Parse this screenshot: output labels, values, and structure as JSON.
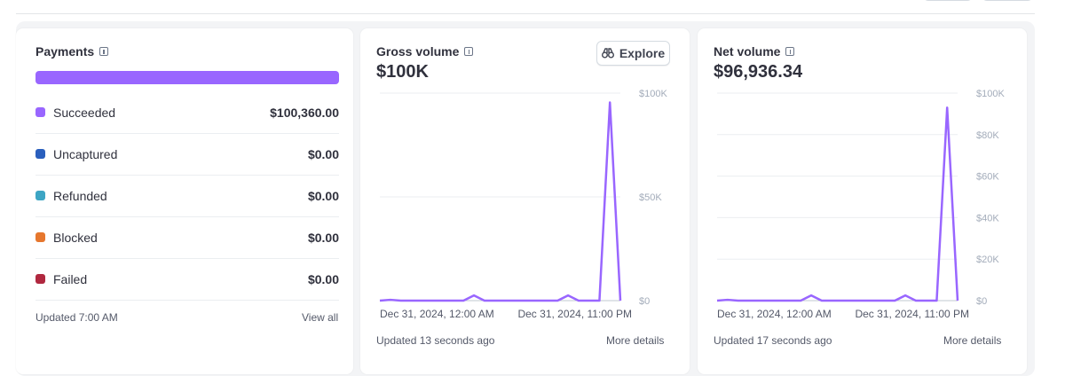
{
  "payments": {
    "title": "Payments",
    "bar_color": "#9966ff",
    "rows": [
      {
        "label": "Succeeded",
        "amount": "$100,360.00",
        "color": "#9966ff"
      },
      {
        "label": "Uncaptured",
        "amount": "$0.00",
        "color": "#2a5fbd"
      },
      {
        "label": "Refunded",
        "amount": "$0.00",
        "color": "#3da5c4"
      },
      {
        "label": "Blocked",
        "amount": "$0.00",
        "color": "#e6772e"
      },
      {
        "label": "Failed",
        "amount": "$0.00",
        "color": "#b0283f"
      }
    ],
    "updated": "Updated 7:00 AM",
    "view_all": "View all"
  },
  "gross": {
    "title": "Gross volume",
    "value": "$100K",
    "explore": "Explore",
    "updated": "Updated 13 seconds ago",
    "more": "More details"
  },
  "net": {
    "title": "Net volume",
    "value": "$96,936.34",
    "updated": "Updated 17 seconds ago",
    "more": "More details"
  },
  "chart_data": [
    {
      "type": "line",
      "title": "Gross volume",
      "x_tick_labels": [
        "Dec 31, 2024, 12:00 AM",
        "Dec 31, 2024, 11:00 PM"
      ],
      "y_tick_labels": [
        "$100K",
        "$50K",
        "$0"
      ],
      "y_ticks": [
        100000,
        50000,
        0
      ],
      "ylim": [
        0,
        100000
      ],
      "x": [
        0,
        1,
        2,
        3,
        4,
        5,
        6,
        7,
        8,
        9,
        10,
        11,
        12,
        13,
        14,
        15,
        16,
        17,
        18,
        19,
        20,
        21,
        22,
        23
      ],
      "series": [
        {
          "name": "Gross volume",
          "color": "#9966ff",
          "values": [
            0,
            400,
            0,
            0,
            0,
            0,
            0,
            0,
            0,
            2500,
            0,
            0,
            0,
            0,
            0,
            0,
            0,
            0,
            2500,
            0,
            0,
            0,
            95500,
            0
          ]
        }
      ]
    },
    {
      "type": "line",
      "title": "Net volume",
      "x_tick_labels": [
        "Dec 31, 2024, 12:00 AM",
        "Dec 31, 2024, 11:00 PM"
      ],
      "y_tick_labels": [
        "$100K",
        "$80K",
        "$60K",
        "$40K",
        "$20K",
        "$0"
      ],
      "y_ticks": [
        100000,
        80000,
        60000,
        40000,
        20000,
        0
      ],
      "ylim": [
        0,
        100000
      ],
      "x": [
        0,
        1,
        2,
        3,
        4,
        5,
        6,
        7,
        8,
        9,
        10,
        11,
        12,
        13,
        14,
        15,
        16,
        17,
        18,
        19,
        20,
        21,
        22,
        23
      ],
      "series": [
        {
          "name": "Net volume",
          "color": "#9966ff",
          "values": [
            0,
            400,
            0,
            0,
            0,
            0,
            0,
            0,
            0,
            2500,
            0,
            0,
            0,
            0,
            0,
            0,
            0,
            0,
            2500,
            0,
            0,
            0,
            93000,
            0
          ]
        }
      ]
    }
  ]
}
